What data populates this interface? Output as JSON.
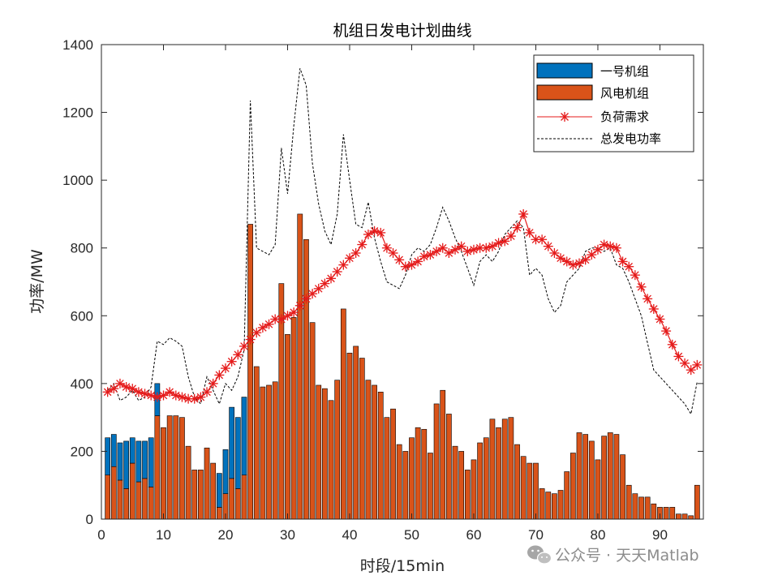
{
  "chart_data": {
    "type": "bar",
    "title": "机组日发电计划曲线",
    "xlabel": "时段/15min",
    "ylabel": "功率/MW",
    "xlim": [
      0,
      97
    ],
    "ylim": [
      0,
      1400
    ],
    "xticks": [
      0,
      10,
      20,
      30,
      40,
      50,
      60,
      70,
      80,
      90
    ],
    "yticks": [
      0,
      200,
      400,
      600,
      800,
      1000,
      1200,
      1400
    ],
    "legend_position": "top-right",
    "x": [
      1,
      2,
      3,
      4,
      5,
      6,
      7,
      8,
      9,
      10,
      11,
      12,
      13,
      14,
      15,
      16,
      17,
      18,
      19,
      20,
      21,
      22,
      23,
      24,
      25,
      26,
      27,
      28,
      29,
      30,
      31,
      32,
      33,
      34,
      35,
      36,
      37,
      38,
      39,
      40,
      41,
      42,
      43,
      44,
      45,
      46,
      47,
      48,
      49,
      50,
      51,
      52,
      53,
      54,
      55,
      56,
      57,
      58,
      59,
      60,
      61,
      62,
      63,
      64,
      65,
      66,
      67,
      68,
      69,
      70,
      71,
      72,
      73,
      74,
      75,
      76,
      77,
      78,
      79,
      80,
      81,
      82,
      83,
      84,
      85,
      86,
      87,
      88,
      89,
      90,
      91,
      92,
      93,
      94,
      95,
      96
    ],
    "series": [
      {
        "name": "一号机组",
        "kind": "stacked-bar",
        "color": "#0072bd",
        "values": [
          110,
          95,
          110,
          140,
          75,
          120,
          110,
          145,
          95,
          0,
          0,
          0,
          0,
          0,
          0,
          0,
          0,
          0,
          100,
          130,
          210,
          210,
          230,
          0,
          0,
          0,
          0,
          0,
          0,
          0,
          0,
          0,
          0,
          0,
          0,
          0,
          0,
          0,
          0,
          0,
          0,
          0,
          0,
          0,
          0,
          0,
          0,
          0,
          0,
          0,
          0,
          0,
          0,
          0,
          0,
          0,
          0,
          0,
          0,
          0,
          0,
          0,
          0,
          0,
          0,
          0,
          0,
          0,
          0,
          0,
          0,
          0,
          0,
          0,
          0,
          0,
          0,
          0,
          0,
          0,
          0,
          0,
          0,
          0,
          0,
          0,
          0,
          0,
          0,
          0,
          0,
          0,
          0,
          0,
          0,
          0
        ]
      },
      {
        "name": "风电机组",
        "kind": "stacked-bar",
        "color": "#d95319",
        "values": [
          130,
          155,
          115,
          90,
          165,
          110,
          120,
          95,
          305,
          270,
          305,
          305,
          300,
          215,
          145,
          145,
          210,
          165,
          35,
          75,
          120,
          90,
          130,
          870,
          450,
          390,
          395,
          405,
          695,
          545,
          595,
          900,
          825,
          580,
          395,
          385,
          350,
          410,
          620,
          490,
          510,
          475,
          410,
          395,
          375,
          300,
          325,
          220,
          200,
          240,
          270,
          265,
          195,
          340,
          380,
          310,
          215,
          200,
          145,
          175,
          225,
          240,
          295,
          270,
          295,
          300,
          220,
          185,
          165,
          165,
          90,
          80,
          75,
          85,
          140,
          195,
          255,
          250,
          230,
          175,
          245,
          255,
          250,
          190,
          100,
          75,
          65,
          65,
          45,
          35,
          35,
          35,
          15,
          15,
          10,
          100
        ]
      },
      {
        "name": "负荷需求",
        "kind": "line-star",
        "color": "#e51b1b",
        "values": [
          375,
          385,
          400,
          390,
          385,
          375,
          370,
          365,
          360,
          365,
          375,
          365,
          360,
          355,
          355,
          360,
          375,
          400,
          425,
          445,
          465,
          485,
          510,
          530,
          550,
          565,
          575,
          590,
          590,
          600,
          610,
          630,
          650,
          665,
          680,
          695,
          710,
          730,
          750,
          770,
          785,
          810,
          840,
          850,
          845,
          800,
          785,
          765,
          745,
          750,
          760,
          775,
          780,
          790,
          800,
          785,
          795,
          805,
          790,
          795,
          800,
          800,
          805,
          815,
          820,
          835,
          860,
          900,
          845,
          825,
          825,
          805,
          785,
          770,
          760,
          750,
          755,
          765,
          780,
          795,
          810,
          805,
          800,
          760,
          745,
          720,
          685,
          650,
          620,
          590,
          555,
          515,
          480,
          460,
          440,
          455
        ]
      },
      {
        "name": "总发电功率",
        "kind": "line-dashed",
        "color": "#000000",
        "values": [
          380,
          400,
          350,
          360,
          380,
          350,
          360,
          390,
          525,
          515,
          535,
          525,
          510,
          420,
          360,
          340,
          420,
          380,
          340,
          400,
          380,
          420,
          500,
          1235,
          800,
          790,
          780,
          810,
          1095,
          960,
          1160,
          1330,
          1280,
          1050,
          930,
          850,
          810,
          900,
          1135,
          1000,
          870,
          860,
          935,
          830,
          760,
          700,
          690,
          680,
          720,
          780,
          800,
          790,
          810,
          860,
          920,
          880,
          830,
          790,
          740,
          690,
          760,
          780,
          760,
          790,
          840,
          860,
          880,
          860,
          720,
          740,
          720,
          650,
          610,
          630,
          700,
          720,
          740,
          790,
          800,
          800,
          790,
          800,
          750,
          740,
          700,
          650,
          600,
          520,
          440,
          420,
          400,
          380,
          360,
          340,
          310,
          405
        ]
      }
    ]
  },
  "watermark": {
    "icon": "wechat-icon",
    "text": "公众号 · 天天Matlab"
  }
}
